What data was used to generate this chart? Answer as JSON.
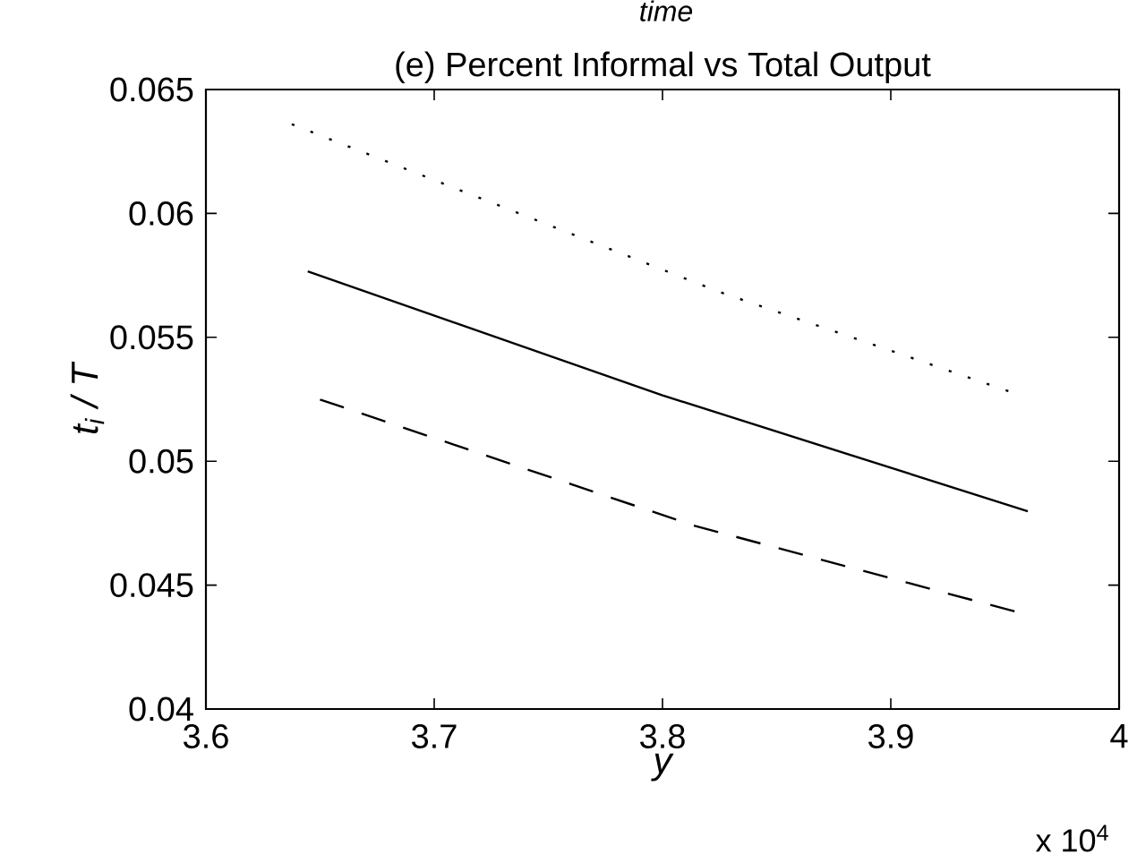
{
  "chart_data": {
    "type": "line",
    "title": "(e)  Percent Informal vs Total Output",
    "xlabel": "y",
    "ylabel": "t$_{i}$ / T",
    "annotations": [
      "time",
      "x 10$^{4}$"
    ],
    "series": [
      {
        "color": "#000000",
        "line_style": "dotted",
        "x": [
          3.6376,
          3.8244,
          3.9515
        ],
        "values": [
          0.0636,
          0.05685,
          0.05283
        ]
      },
      {
        "color": "#000000",
        "line_style": "solid",
        "x": [
          3.6446,
          3.8,
          3.96
        ],
        "values": [
          0.05766,
          0.05266,
          0.04798
        ]
      },
      {
        "color": "#000000",
        "line_style": "dashed",
        "x": [
          3.65,
          3.8135,
          3.9542
        ],
        "values": [
          0.05249,
          0.04741,
          0.04394
        ]
      }
    ],
    "marker": "none",
    "grid": false,
    "xlim": [
      3.6,
      4
    ],
    "xticks": [
      3.6,
      3.7,
      3.8,
      3.9,
      4
    ],
    "ylim": [
      0.04,
      0.065
    ],
    "yticks": [
      0.04,
      0.045,
      0.05,
      0.055,
      0.06,
      0.065
    ]
  }
}
